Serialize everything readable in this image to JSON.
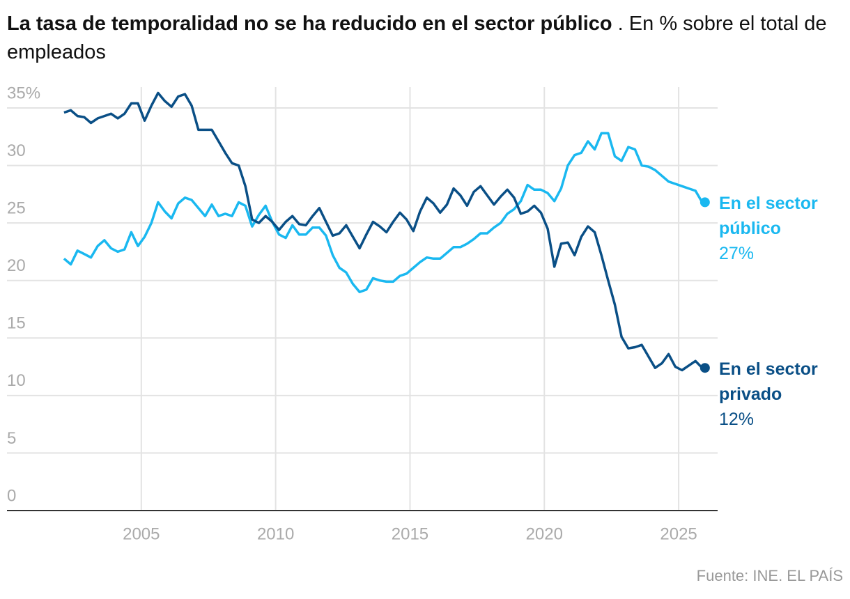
{
  "chart_data": {
    "type": "line",
    "title": "La tasa de temporalidad no se ha reducido en el sector público",
    "subtitle": ". En % sobre el total de empleados",
    "source": "Fuente: INE. EL PAÍS",
    "x": [
      2002.125,
      2002.375,
      2002.625,
      2002.875,
      2003.125,
      2003.375,
      2003.625,
      2003.875,
      2004.125,
      2004.375,
      2004.625,
      2004.875,
      2005.125,
      2005.375,
      2005.625,
      2005.875,
      2006.125,
      2006.375,
      2006.625,
      2006.875,
      2007.125,
      2007.375,
      2007.625,
      2007.875,
      2008.125,
      2008.375,
      2008.625,
      2008.875,
      2009.125,
      2009.375,
      2009.625,
      2009.875,
      2010.125,
      2010.375,
      2010.625,
      2010.875,
      2011.125,
      2011.375,
      2011.625,
      2011.875,
      2012.125,
      2012.375,
      2012.625,
      2012.875,
      2013.125,
      2013.375,
      2013.625,
      2013.875,
      2014.125,
      2014.375,
      2014.625,
      2014.875,
      2015.125,
      2015.375,
      2015.625,
      2015.875,
      2016.125,
      2016.375,
      2016.625,
      2016.875,
      2017.125,
      2017.375,
      2017.625,
      2017.875,
      2018.125,
      2018.375,
      2018.625,
      2018.875,
      2019.125,
      2019.375,
      2019.625,
      2019.875,
      2020.125,
      2020.375,
      2020.625,
      2020.875,
      2021.125,
      2021.375,
      2021.625,
      2021.875,
      2022.125,
      2022.375,
      2022.625,
      2022.875,
      2023.125,
      2023.375,
      2023.625,
      2023.875,
      2024.125,
      2024.375,
      2024.625,
      2024.875,
      2025.125,
      2025.375,
      2025.625,
      2025.875
    ],
    "series": [
      {
        "name": "En el sector público",
        "color": "#1ab8f0",
        "values": [
          21.9,
          21.4,
          22.6,
          22.3,
          22.0,
          23.0,
          23.5,
          22.8,
          22.5,
          22.7,
          24.2,
          23.0,
          23.8,
          25.0,
          26.8,
          26.0,
          25.4,
          26.7,
          27.2,
          27.0,
          26.3,
          25.6,
          26.6,
          25.6,
          25.8,
          25.6,
          26.8,
          26.5,
          24.7,
          25.7,
          26.5,
          25.1,
          24.0,
          23.7,
          24.8,
          24.0,
          24.0,
          24.6,
          24.6,
          23.9,
          22.2,
          21.1,
          20.7,
          19.7,
          19.0,
          19.2,
          20.2,
          20.0,
          19.9,
          19.9,
          20.4,
          20.6,
          21.1,
          21.6,
          22.0,
          21.9,
          21.9,
          22.4,
          22.9,
          22.9,
          23.2,
          23.6,
          24.1,
          24.1,
          24.6,
          25.0,
          25.8,
          26.2,
          26.9,
          28.3,
          27.9,
          27.9,
          27.6,
          26.9,
          28.0,
          30.0,
          30.9,
          31.1,
          32.1,
          31.4,
          32.8,
          32.8,
          30.8,
          30.4,
          31.6,
          31.4,
          30.0,
          29.9,
          29.6,
          29.1,
          28.6,
          28.4,
          28.2,
          28.0,
          27.8,
          26.8
        ],
        "value_labels": [
          null,
          null,
          null,
          null,
          null,
          null,
          null,
          null,
          null,
          null,
          null,
          null,
          null,
          null,
          null,
          null,
          null,
          null,
          null,
          null,
          null,
          null,
          null,
          null,
          null,
          null,
          null,
          null,
          null,
          null,
          null,
          null,
          null,
          null,
          null,
          null,
          null,
          null,
          null,
          null,
          null,
          null,
          null,
          null,
          null,
          null,
          null,
          null,
          null,
          null,
          null,
          null,
          null,
          null,
          null,
          null,
          null,
          null,
          null,
          null,
          null,
          null,
          null,
          null,
          null,
          null,
          null,
          null,
          null,
          null,
          null,
          null,
          null,
          null,
          null,
          null,
          null,
          null,
          null,
          null,
          null,
          null,
          null,
          null,
          null,
          null,
          null,
          null,
          null,
          null,
          null,
          null,
          null,
          null,
          null,
          "27%"
        ]
      },
      {
        "name": "En el sector privado",
        "color": "#0a4f86",
        "values": [
          34.6,
          34.8,
          34.3,
          34.2,
          33.7,
          34.1,
          34.3,
          34.5,
          34.1,
          34.5,
          35.4,
          35.4,
          33.9,
          35.2,
          36.3,
          35.6,
          35.1,
          36.0,
          36.2,
          35.2,
          33.1,
          33.1,
          33.1,
          32.1,
          31.1,
          30.2,
          30.0,
          28.2,
          25.3,
          25.0,
          25.6,
          25.1,
          24.4,
          25.1,
          25.6,
          24.9,
          24.8,
          25.6,
          26.3,
          25.1,
          23.9,
          24.1,
          24.8,
          23.8,
          22.8,
          24.0,
          25.1,
          24.7,
          24.2,
          25.1,
          25.9,
          25.3,
          24.3,
          26.0,
          27.2,
          26.7,
          25.9,
          26.6,
          28.0,
          27.4,
          26.5,
          27.7,
          28.2,
          27.4,
          26.6,
          27.3,
          27.9,
          27.2,
          25.8,
          26.0,
          26.5,
          25.9,
          24.5,
          21.2,
          23.2,
          23.3,
          22.2,
          23.8,
          24.7,
          24.2,
          22.2,
          20.0,
          17.9,
          15.1,
          14.1,
          14.2,
          14.4,
          13.4,
          12.4,
          12.8,
          13.6,
          12.5,
          12.2,
          12.6,
          13.0,
          12.4
        ],
        "value_labels": [
          null,
          null,
          null,
          null,
          null,
          null,
          null,
          null,
          null,
          null,
          null,
          null,
          null,
          null,
          null,
          null,
          null,
          null,
          null,
          null,
          null,
          null,
          null,
          null,
          null,
          null,
          null,
          null,
          null,
          null,
          null,
          null,
          null,
          null,
          null,
          null,
          null,
          null,
          null,
          null,
          null,
          null,
          null,
          null,
          null,
          null,
          null,
          null,
          null,
          null,
          null,
          null,
          null,
          null,
          null,
          null,
          null,
          null,
          null,
          null,
          null,
          null,
          null,
          null,
          null,
          null,
          null,
          null,
          null,
          null,
          null,
          null,
          null,
          null,
          null,
          null,
          null,
          null,
          null,
          null,
          null,
          null,
          null,
          null,
          null,
          null,
          null,
          null,
          null,
          null,
          null,
          null,
          null,
          null,
          null,
          "12%"
        ]
      }
    ],
    "xlim": [
      2000,
      2026.45
    ],
    "xticks": [
      2005,
      2010,
      2015,
      2020,
      2025
    ],
    "ylim": [
      0,
      35
    ],
    "yticks": [
      0,
      5,
      10,
      15,
      20,
      25,
      30,
      {
        "value": 35,
        "label": "35%"
      }
    ],
    "grid": true
  }
}
